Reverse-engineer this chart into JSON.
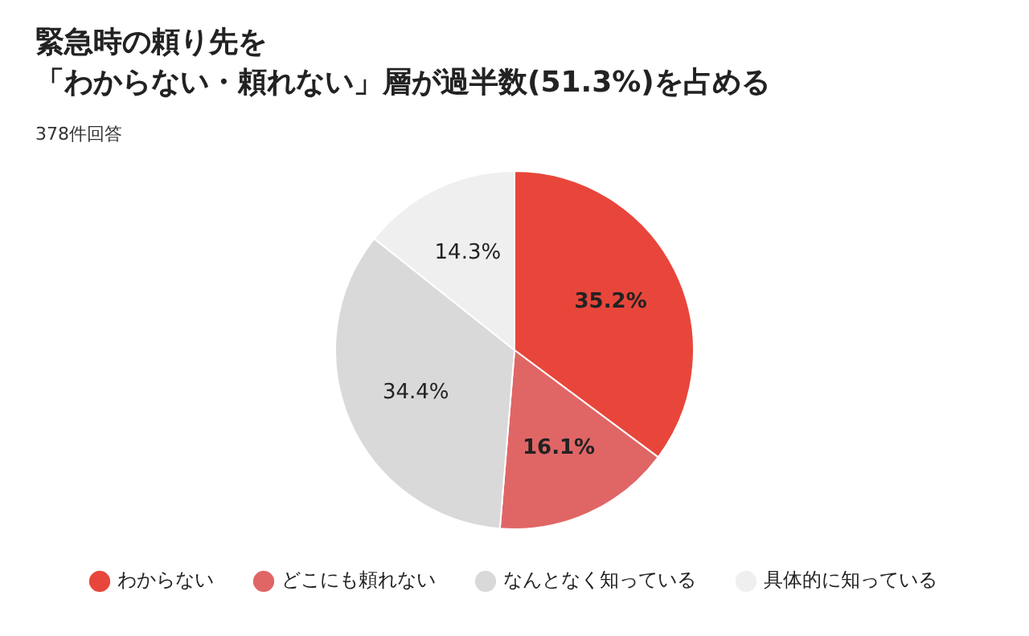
{
  "chart_data": {
    "type": "pie",
    "title": "緊急時の頼り先を",
    "subtitle": "「わからない・頼れない」層が過半数(51.3%)を占める",
    "annotations": [
      "378件回答"
    ],
    "categories": [
      "わからない",
      "どこにも頼れない",
      "なんとなく知っている",
      "具体的に知っている"
    ],
    "values": [
      35.2,
      16.1,
      34.4,
      14.3
    ],
    "colors": [
      "#e8463a",
      "#e06666",
      "#d9d9d9",
      "#efefef"
    ],
    "value_labels": [
      "35.2%",
      "16.1%",
      "34.4%",
      "14.3%"
    ],
    "legend": "bottom"
  }
}
